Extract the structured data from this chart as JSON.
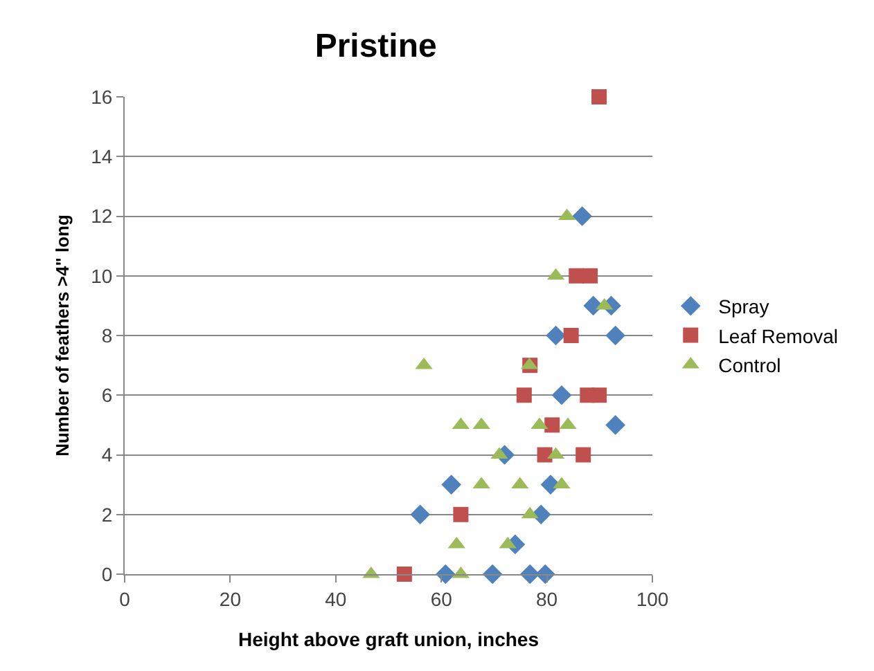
{
  "chart_data": {
    "type": "scatter",
    "title": "Pristine",
    "xlabel": "Height above graft union, inches",
    "ylabel": "Number of feathers >4\" long",
    "xlim": [
      0,
      100
    ],
    "xticks": [
      0,
      20,
      40,
      60,
      80,
      100
    ],
    "ylim": [
      0,
      16
    ],
    "yticks": [
      0,
      2,
      4,
      6,
      8,
      10,
      12,
      14,
      16
    ],
    "grid": "y",
    "legend": "right",
    "series": [
      {
        "name": "Spray",
        "color": "#4f81bd",
        "marker": "diamond",
        "x": [
          86.7,
          88.8,
          92.2,
          81.7,
          93,
          82.8,
          93,
          72,
          61.9,
          80.7,
          56,
          78.9,
          74,
          60.8,
          69.7,
          76.8,
          79.7
        ],
        "values": [
          12,
          9,
          9,
          8,
          8,
          6,
          5,
          4,
          3,
          3,
          2,
          2,
          1,
          0,
          0,
          0,
          0
        ]
      },
      {
        "name": "Leaf Removal",
        "color": "#c0504d",
        "marker": "square",
        "x": [
          89.9,
          85.6,
          88.2,
          84.6,
          76.8,
          75.7,
          87.7,
          89.9,
          81,
          79.6,
          86.9,
          63.7,
          53
        ],
        "values": [
          16,
          10,
          10,
          8,
          7,
          6,
          6,
          6,
          5,
          4,
          4,
          2,
          0
        ]
      },
      {
        "name": "Control",
        "color": "#9bbb59",
        "marker": "triangle",
        "x": [
          83.8,
          81.7,
          90.9,
          56.7,
          76.7,
          63.7,
          67.6,
          78.6,
          84,
          71,
          81.7,
          67.6,
          74.9,
          82.8,
          76.8,
          62.9,
          72.6,
          46.7,
          63.7
        ],
        "values": [
          12,
          10,
          9,
          7,
          7,
          5,
          5,
          5,
          5,
          4,
          4,
          3,
          3,
          3,
          2,
          1,
          1,
          0,
          0
        ]
      }
    ]
  }
}
